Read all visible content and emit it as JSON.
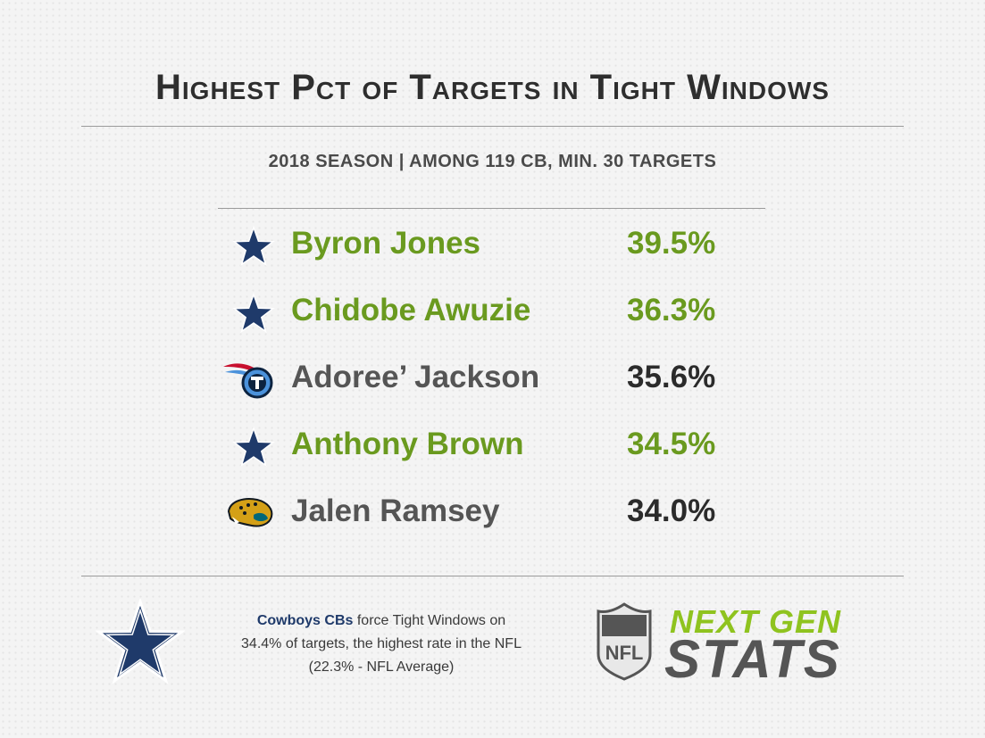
{
  "header": {
    "title": "Highest Pct of Targets in Tight Windows",
    "subtitle": "2018 SEASON | AMONG 119 CB, MIN. 30 TARGETS"
  },
  "players": [
    {
      "name": "Byron Jones",
      "pct": "39.5%",
      "team_icon": "cowboys-star-icon",
      "highlight": true
    },
    {
      "name": "Chidobe Awuzie",
      "pct": "36.3%",
      "team_icon": "cowboys-star-icon",
      "highlight": true
    },
    {
      "name": "Adoree’ Jackson",
      "pct": "35.6%",
      "team_icon": "titans-logo-icon",
      "highlight": false
    },
    {
      "name": "Anthony Brown",
      "pct": "34.5%",
      "team_icon": "cowboys-star-icon",
      "highlight": true
    },
    {
      "name": "Jalen Ramsey",
      "pct": "34.0%",
      "team_icon": "jaguars-logo-icon",
      "highlight": false
    }
  ],
  "footer": {
    "note_highlight": "Cowboys CBs",
    "note_line1_rest": " force Tight Windows on",
    "note_line2": "34.4% of targets, the highest rate in the NFL",
    "note_line3": "(22.3% - NFL Average)",
    "brand_line1": "NEXT GEN",
    "brand_line2": "STATS",
    "nfl_shield_text": "NFL"
  },
  "colors": {
    "highlight_green": "#6a9a1f",
    "cowboys_navy": "#1f3a6a",
    "text_dark": "#2b2b2b",
    "ngs_green": "#8fc31f"
  }
}
